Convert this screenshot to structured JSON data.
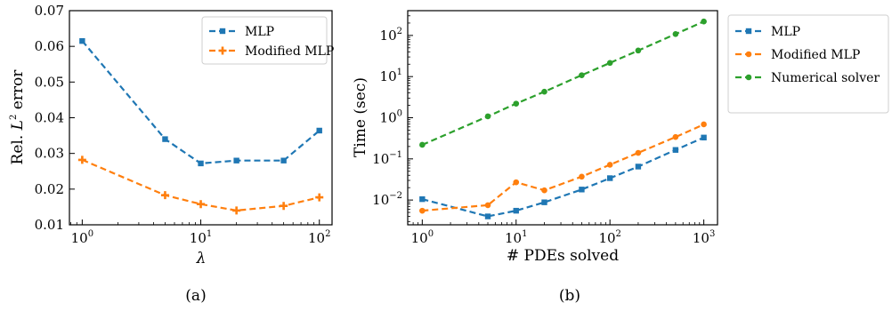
{
  "chart_data": [
    {
      "type": "line",
      "caption": "(a)",
      "xlabel": "λ",
      "ylabel_prefix": "Rel. ",
      "ylabel_math": "L",
      "ylabel_sup": "2",
      "ylabel_suffix": " error",
      "x_scale": "log",
      "xlim": [
        0.78,
        128
      ],
      "ylim": [
        0.01,
        0.07
      ],
      "x_ticks": [
        {
          "base": "10",
          "exp": "0"
        },
        {
          "base": "10",
          "exp": "1"
        },
        {
          "base": "10",
          "exp": "2"
        }
      ],
      "y_ticks": [
        "0.01",
        "0.02",
        "0.03",
        "0.04",
        "0.05",
        "0.06",
        "0.07"
      ],
      "grid": false,
      "legend_position": "top-right",
      "series": [
        {
          "name": "MLP",
          "color": "#1f77b4",
          "marker": "square",
          "x": [
            1,
            5,
            10,
            20,
            50,
            100
          ],
          "y": [
            0.0615,
            0.034,
            0.0272,
            0.028,
            0.028,
            0.0364
          ]
        },
        {
          "name": "Modified MLP",
          "color": "#ff7f0e",
          "marker": "plus",
          "x": [
            1,
            5,
            10,
            20,
            50,
            100
          ],
          "y": [
            0.0282,
            0.0183,
            0.0158,
            0.014,
            0.0153,
            0.0177
          ]
        }
      ]
    },
    {
      "type": "line",
      "caption": "(b)",
      "xlabel": "# PDEs solved",
      "ylabel": "Time (sec)",
      "x_scale": "log",
      "y_scale": "log",
      "xlim": [
        0.7,
        1400
      ],
      "ylim": [
        0.0025,
        400
      ],
      "x_ticks": [
        {
          "base": "10",
          "exp": "0"
        },
        {
          "base": "10",
          "exp": "1"
        },
        {
          "base": "10",
          "exp": "2"
        },
        {
          "base": "10",
          "exp": "3"
        }
      ],
      "y_ticks": [
        {
          "base": "10",
          "exp": "−2"
        },
        {
          "base": "10",
          "exp": "−1"
        },
        {
          "base": "10",
          "exp": "0"
        },
        {
          "base": "10",
          "exp": "1"
        },
        {
          "base": "10",
          "exp": "2"
        }
      ],
      "grid": false,
      "legend_position": "outside-right",
      "series": [
        {
          "name": "MLP",
          "color": "#1f77b4",
          "marker": "square",
          "x": [
            1,
            5,
            10,
            20,
            50,
            100,
            200,
            500,
            1000
          ],
          "y": [
            0.0105,
            0.004,
            0.0055,
            0.0088,
            0.018,
            0.034,
            0.065,
            0.165,
            0.33
          ]
        },
        {
          "name": "Modified MLP",
          "color": "#ff7f0e",
          "marker": "circle",
          "x": [
            1,
            5,
            10,
            20,
            50,
            100,
            200,
            500,
            1000
          ],
          "y": [
            0.0055,
            0.0075,
            0.027,
            0.0172,
            0.037,
            0.072,
            0.14,
            0.34,
            0.69
          ]
        },
        {
          "name": "Numerical solver",
          "color": "#2ca02c",
          "marker": "circle",
          "x": [
            1,
            5,
            10,
            20,
            50,
            100,
            200,
            500,
            1000
          ],
          "y": [
            0.22,
            1.08,
            2.2,
            4.3,
            10.8,
            21.5,
            43,
            108,
            218
          ]
        }
      ]
    }
  ]
}
